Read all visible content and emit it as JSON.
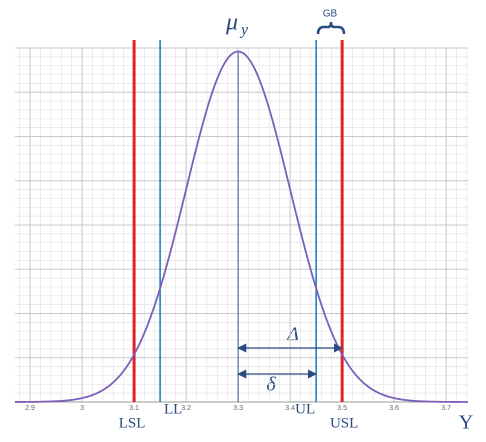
{
  "chart_data": {
    "type": "normal",
    "curve": {
      "mean": 3.3,
      "sd": 0.1,
      "amplitude": 0.99,
      "color": "#7b5fb8"
    },
    "mean_label": {
      "symbol": "μ",
      "subscript": "y"
    },
    "limits": [
      {
        "name": "LSL",
        "value": 3.1,
        "color": "#e02424"
      },
      {
        "name": "LL",
        "value": 3.15,
        "color": "#1f7fc4"
      },
      {
        "name": "UL",
        "value": 3.45,
        "color": "#1f7fc4"
      },
      {
        "name": "USL",
        "value": 3.5,
        "color": "#e02424"
      }
    ],
    "guard_band_label": "GB",
    "big_delta_label": "Δ",
    "small_delta_label": "δ",
    "x_label": "Y",
    "xlim": [
      2.871,
      3.742
    ],
    "xticks": [
      2.9,
      3,
      3.1,
      3.2,
      3.3,
      3.4,
      3.5,
      3.6,
      3.7
    ],
    "ylim": [
      0,
      1
    ],
    "yticks": [
      0,
      0.125,
      0.25,
      0.375,
      0.5,
      0.625,
      0.75,
      0.875,
      1
    ],
    "grid": true
  }
}
